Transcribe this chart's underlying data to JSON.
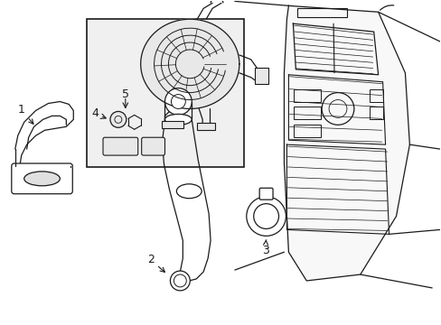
{
  "bg_color": "#ffffff",
  "line_color": "#1a1a1a",
  "box_bg": "#f0f0f0",
  "fig_width": 4.89,
  "fig_height": 3.6,
  "dpi": 100
}
